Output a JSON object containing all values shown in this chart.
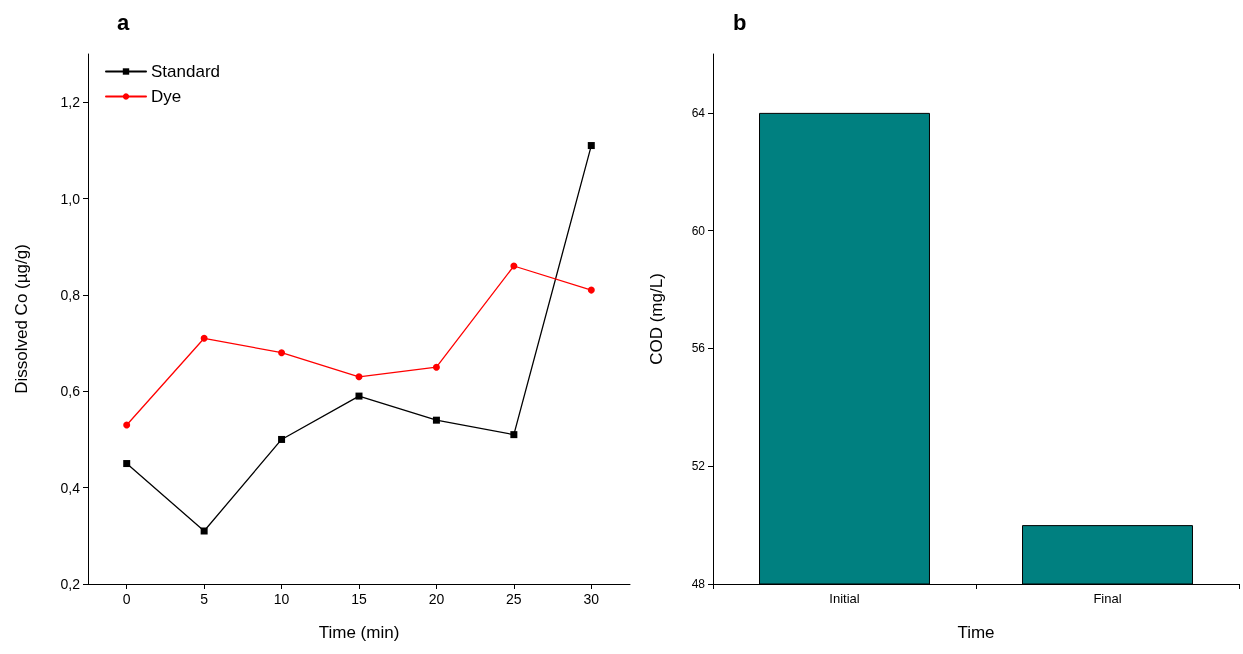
{
  "chart_data": [
    {
      "type": "line",
      "title": "a",
      "xlabel": "Time (min)",
      "ylabel": "Dissolved Co (µg/g)",
      "x": [
        0,
        5,
        10,
        15,
        20,
        25,
        30
      ],
      "series": [
        {
          "name": "Standard",
          "color": "#000000",
          "marker": "square",
          "values": [
            0.45,
            0.31,
            0.5,
            0.59,
            0.54,
            0.51,
            1.11
          ]
        },
        {
          "name": "Dye",
          "color": "#ff0000",
          "marker": "circle",
          "values": [
            0.53,
            0.71,
            0.68,
            0.63,
            0.65,
            0.86,
            0.81
          ]
        }
      ],
      "xlim": [
        -2.5,
        32.5
      ],
      "xticks": [
        0,
        5,
        10,
        15,
        20,
        25,
        30
      ],
      "ylim": [
        0.2,
        1.3
      ],
      "yticks": [
        {
          "value": 0.2,
          "label": "0,2"
        },
        {
          "value": 0.4,
          "label": "0,4"
        },
        {
          "value": 0.6,
          "label": "0,6"
        },
        {
          "value": 0.8,
          "label": "0,8"
        },
        {
          "value": 1.0,
          "label": "1,0"
        },
        {
          "value": 1.2,
          "label": "1,2"
        }
      ],
      "grid": false,
      "legend": "top left",
      "line_style": "solid"
    },
    {
      "type": "bar",
      "title": "b",
      "xlabel": "Time",
      "ylabel": "COD (mg/L)",
      "categories": [
        "Initial",
        "Final"
      ],
      "values": [
        64,
        50
      ],
      "color": "#008080",
      "ylim": [
        48,
        66
      ],
      "yticks": [
        48,
        52,
        56,
        60,
        64
      ],
      "grid": false,
      "legend": false
    }
  ]
}
